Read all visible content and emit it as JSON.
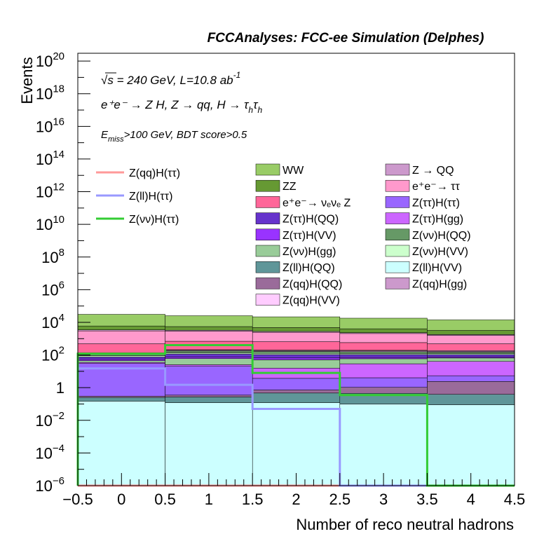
{
  "chart_data": {
    "type": "area",
    "title": "FCCAnalyses: FCC-ee Simulation (Delphes)",
    "ylabel": "Events",
    "xlabel": "Number of reco neutral hadrons",
    "yscale": "log",
    "ylim": [
      1e-06,
      3e+20
    ],
    "xlim": [
      -0.5,
      4.5
    ],
    "bin_edges": [
      -0.5,
      0.5,
      1.5,
      2.5,
      3.5,
      4.5
    ],
    "x_ticks": [
      "−0.5",
      "0",
      "0.5",
      "1",
      "1.5",
      "2",
      "2.5",
      "3",
      "3.5",
      "4",
      "4.5"
    ],
    "y_ticks": [
      {
        "base": "10",
        "exp": "20",
        "value": 1e+20
      },
      {
        "base": "10",
        "exp": "18",
        "value": 1e+18
      },
      {
        "base": "10",
        "exp": "16",
        "value": 1e+16
      },
      {
        "base": "10",
        "exp": "14",
        "value": 100000000000000.0
      },
      {
        "base": "10",
        "exp": "12",
        "value": 1000000000000.0
      },
      {
        "base": "10",
        "exp": "10",
        "value": 10000000000.0
      },
      {
        "base": "10",
        "exp": "8",
        "value": 100000000.0
      },
      {
        "base": "10",
        "exp": "6",
        "value": 1000000.0
      },
      {
        "base": "10",
        "exp": "4",
        "value": 10000.0
      },
      {
        "base": "10",
        "exp": "2",
        "value": 100.0
      },
      {
        "base": "1",
        "exp": "",
        "value": 1
      },
      {
        "base": "10",
        "exp": "−2",
        "value": 0.01
      },
      {
        "base": "10",
        "exp": "−4",
        "value": 0.0001
      },
      {
        "base": "10",
        "exp": "−6",
        "value": 1e-06
      }
    ],
    "annotations": {
      "line1_sqrt": "√s",
      "line1_rest": " = 240 GeV, L=10.8 ab",
      "line1_exp": "-1",
      "line2": "e⁺e⁻ → Z H, Z → qq, H → τ",
      "line2_sub1": "h",
      "line2_mid": "τ",
      "line2_sub2": "h",
      "line3_E": "E",
      "line3_sub": "miss",
      "line3_rest": ">100 GeV, BDT score>0.5"
    },
    "stacked_series": [
      {
        "name": "Z(ll)H(VV)",
        "color": "#ccffff",
        "values": [
          0.15,
          0.12,
          0.12,
          0.1,
          0.09
        ]
      },
      {
        "name": "Z(ll)H(QQ)",
        "color": "#5f9699",
        "values": [
          0.1,
          0.15,
          0.35,
          0.35,
          0.3
        ]
      },
      {
        "name": "Z(qq)H(QQ)",
        "color": "#9a6b9a",
        "values": [
          0.05,
          0.08,
          0.25,
          0.6,
          2.0
        ]
      },
      {
        "name": "Z(ττ)H(ττ)",
        "color": "#9966ff",
        "values": [
          30,
          20,
          3,
          3,
          3
        ]
      },
      {
        "name": "Z(ττ)H(gg)",
        "color": "#cc66ff",
        "values": [
          5,
          5,
          12,
          25,
          35
        ]
      },
      {
        "name": "Z(νν)H(gg)",
        "color": "#99cc99",
        "values": [
          10,
          35,
          35,
          30,
          25
        ]
      },
      {
        "name": "Z(ττ)H(VV)",
        "color": "#9933ff",
        "values": [
          10,
          15,
          15,
          12,
          10
        ]
      },
      {
        "name": "Z(ττ)H(QQ)",
        "color": "#6633cc",
        "values": [
          20,
          40,
          40,
          35,
          30
        ]
      },
      {
        "name": "Z(νν)H(VV)",
        "color": "#ccffcc",
        "values": [
          15,
          20,
          20,
          18,
          15
        ]
      },
      {
        "name": "Z(νν)H(QQ)",
        "color": "#669966",
        "values": [
          25,
          40,
          40,
          35,
          30
        ]
      },
      {
        "name": "Z(qq)H(gg)",
        "color": "#cc99cc",
        "values": [
          10,
          20,
          20,
          20,
          20
        ]
      },
      {
        "name": "Z(qq)H(VV)",
        "color": "#ffccff",
        "values": [
          10,
          15,
          15,
          15,
          15
        ]
      },
      {
        "name": "e⁺e⁻→ νₑνₑ Z",
        "color": "#ff6699",
        "values": [
          350,
          480,
          450,
          380,
          300
        ]
      },
      {
        "name": "e⁺e⁻→ ττ",
        "color": "#ff99cc",
        "values": [
          2500,
          2200,
          1800,
          1500,
          1100
        ]
      },
      {
        "name": "Z → QQ",
        "color": "#cc99cc",
        "values": [
          500,
          400,
          320,
          260,
          200
        ]
      },
      {
        "name": "ZZ",
        "color": "#669933",
        "values": [
          2500,
          2200,
          2000,
          1700,
          1400
        ]
      },
      {
        "name": "WW",
        "color": "#99cc66",
        "values": [
          25000,
          20000,
          17000,
          14000,
          11000
        ]
      }
    ],
    "signal_series": [
      {
        "name": "Z(qq)H(ττ)",
        "color": "#ff9999",
        "values": [
          1e-06,
          1e-06,
          1e-06,
          1e-06,
          1e-06
        ]
      },
      {
        "name": "Z(ll)H(ττ)",
        "color": "#9999ff",
        "values": [
          15,
          1.5,
          0.05,
          1e-06,
          1e-06
        ]
      },
      {
        "name": "Z(νν)H(ττ)",
        "color": "#33cc33",
        "values": [
          120,
          400,
          8,
          0.35,
          1e-06
        ]
      }
    ],
    "legend_signal": [
      "Z(qq)H(ττ)",
      "Z(ll)H(ττ)",
      "Z(νν)H(ττ)"
    ],
    "legend_col1": [
      {
        "label": "WW",
        "color": "#99cc66"
      },
      {
        "label": "ZZ",
        "color": "#669933"
      },
      {
        "label": "e⁺e⁻→ νₑνₑ Z",
        "color": "#ff6699"
      },
      {
        "label": "Z(ττ)H(QQ)",
        "color": "#6633cc"
      },
      {
        "label": "Z(ττ)H(VV)",
        "color": "#9933ff"
      },
      {
        "label": "Z(νν)H(gg)",
        "color": "#99cc99"
      },
      {
        "label": "Z(ll)H(QQ)",
        "color": "#5f9699"
      },
      {
        "label": "Z(qq)H(QQ)",
        "color": "#9a6b9a"
      },
      {
        "label": "Z(qq)H(VV)",
        "color": "#ffccff"
      }
    ],
    "legend_col2": [
      {
        "label": "Z → QQ",
        "color": "#cc99cc"
      },
      {
        "label": "e⁺e⁻→ ττ",
        "color": "#ff99cc"
      },
      {
        "label": "Z(ττ)H(ττ)",
        "color": "#9966ff"
      },
      {
        "label": "Z(ττ)H(gg)",
        "color": "#cc66ff"
      },
      {
        "label": "Z(νν)H(QQ)",
        "color": "#669966"
      },
      {
        "label": "Z(νν)H(VV)",
        "color": "#ccffcc"
      },
      {
        "label": "Z(ll)H(VV)",
        "color": "#ccffff"
      },
      {
        "label": "Z(qq)H(gg)",
        "color": "#cc99cc"
      }
    ]
  }
}
